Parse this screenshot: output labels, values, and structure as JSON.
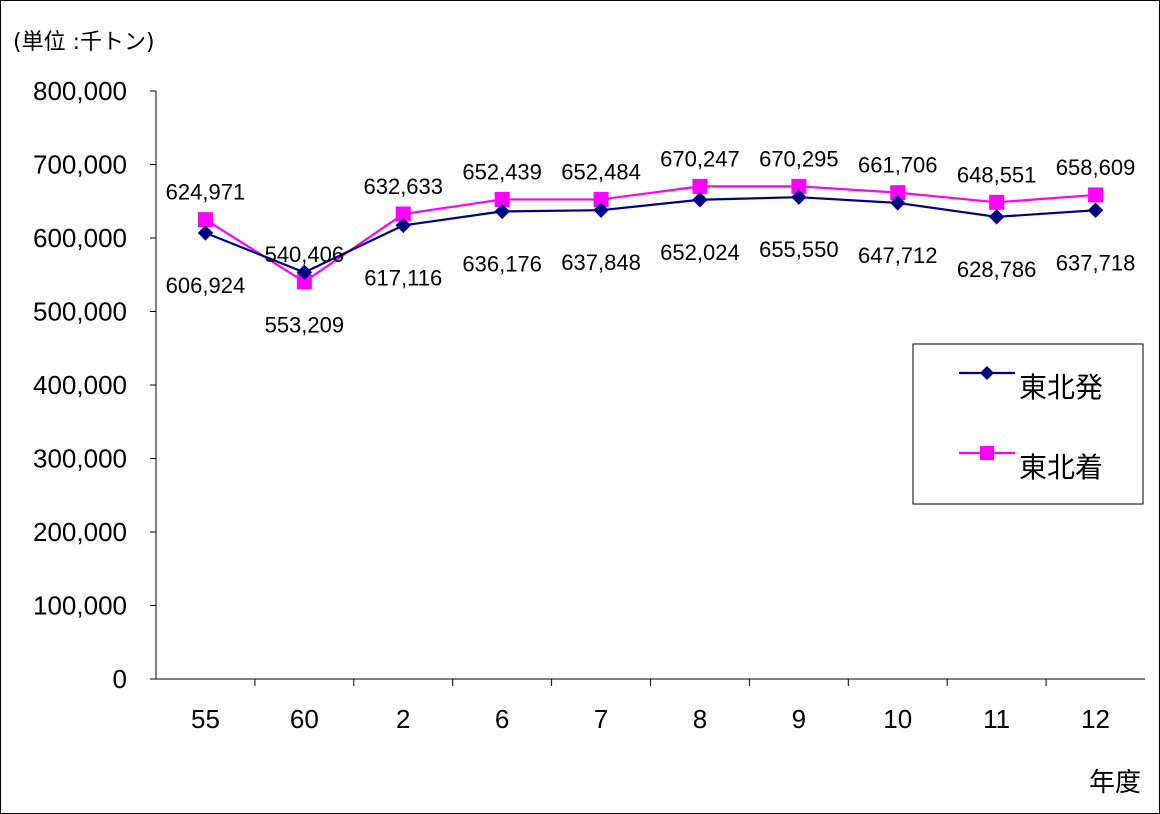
{
  "chart_data": {
    "type": "line",
    "unit_label": "(単位 :千トン)",
    "xlabel": "年度",
    "ylabel": "",
    "categories": [
      "55",
      "60",
      "2",
      "6",
      "7",
      "8",
      "9",
      "10",
      "11",
      "12"
    ],
    "ylim": [
      0,
      800000
    ],
    "yticks": [
      "0",
      "100,000",
      "200,000",
      "300,000",
      "400,000",
      "500,000",
      "600,000",
      "700,000",
      "800,000"
    ],
    "grid": false,
    "legend_position": "right",
    "series": [
      {
        "name": "東北発",
        "color": "#000080",
        "marker": "diamond",
        "values": [
          606924,
          553209,
          617116,
          636176,
          637848,
          652024,
          655550,
          647712,
          628786,
          637718
        ],
        "labels": [
          "606,924",
          "553,209",
          "617,116",
          "636,176",
          "637,848",
          "652,024",
          "655,550",
          "647,712",
          "628,786",
          "637,718"
        ]
      },
      {
        "name": "東北着",
        "color": "#FF00FF",
        "marker": "square",
        "values": [
          624971,
          540406,
          632633,
          652439,
          652484,
          670247,
          670295,
          661706,
          648551,
          658609
        ],
        "labels": [
          "624,971",
          "540,406",
          "632,633",
          "652,439",
          "652,484",
          "670,247",
          "670,295",
          "661,706",
          "648,551",
          "658,609"
        ]
      }
    ]
  }
}
